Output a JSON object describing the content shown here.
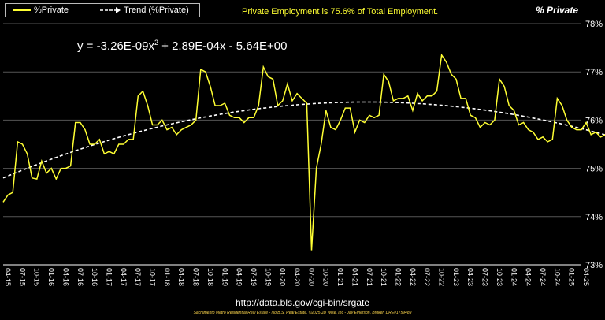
{
  "legend": {
    "series_label": "%Private",
    "trend_label": "Trend (%Private)"
  },
  "header_note": "Private Employment is 75.6% of Total Employment.",
  "corner_title": "% Private",
  "equation": {
    "part1": "y = -3.26E-09x",
    "exponent": "2",
    "part2": " + 2.89E-04x - 5.64E+00"
  },
  "source_url": "http://data.bls.gov/cgi-bin/srgate",
  "credit": "Sacramento Metro Residential Real Estate - No B.S. Real Estate, ©2025 JD Wise, Inc - Jay Emerson, Broker, DRE#1759489",
  "colors": {
    "series": "#ffff33",
    "trend": "#ffffff",
    "background": "#000000"
  },
  "chart_data": {
    "type": "line",
    "ylim": [
      73,
      78
    ],
    "y_ticks": [
      "73%",
      "74%",
      "75%",
      "76%",
      "77%",
      "78%"
    ],
    "x_tick_labels": [
      "04-15",
      "07-15",
      "10-15",
      "01-16",
      "04-16",
      "07-16",
      "10-16",
      "01-17",
      "04-17",
      "07-17",
      "10-17",
      "01-18",
      "04-18",
      "07-18",
      "10-18",
      "01-19",
      "04-19",
      "07-19",
      "10-19",
      "01-20",
      "04-20",
      "07-20",
      "10-20",
      "01-21",
      "04-21",
      "07-21",
      "10-21",
      "01-22",
      "04-22",
      "07-22",
      "10-22",
      "01-23",
      "04-23",
      "07-23",
      "10-23",
      "01-24",
      "04-24",
      "07-24",
      "10-24",
      "01-25",
      "04-25"
    ],
    "start_month": "04-15",
    "series": [
      {
        "name": "%Private",
        "values": [
          74.3,
          74.45,
          74.5,
          75.55,
          75.5,
          75.3,
          74.8,
          74.78,
          75.15,
          74.9,
          75.0,
          74.78,
          75.0,
          75.0,
          75.05,
          75.95,
          75.95,
          75.8,
          75.5,
          75.5,
          75.6,
          75.3,
          75.35,
          75.3,
          75.5,
          75.5,
          75.6,
          75.6,
          76.5,
          76.6,
          76.3,
          75.9,
          75.9,
          76.0,
          75.8,
          75.85,
          75.7,
          75.8,
          75.85,
          75.9,
          76.0,
          77.05,
          77.0,
          76.7,
          76.3,
          76.3,
          76.35,
          76.1,
          76.05,
          76.05,
          75.95,
          76.05,
          76.05,
          76.3,
          77.1,
          76.9,
          76.85,
          76.3,
          76.4,
          76.75,
          76.4,
          76.55,
          76.45,
          76.35,
          73.3,
          75.0,
          75.5,
          76.2,
          75.85,
          75.8,
          76.0,
          76.25,
          76.25,
          75.75,
          76.0,
          75.95,
          76.1,
          76.05,
          76.1,
          76.95,
          76.8,
          76.4,
          76.45,
          76.45,
          76.5,
          76.2,
          76.55,
          76.4,
          76.5,
          76.5,
          76.6,
          77.35,
          77.2,
          76.95,
          76.85,
          76.45,
          76.45,
          76.1,
          76.05,
          75.85,
          75.95,
          75.9,
          76.0,
          76.85,
          76.7,
          76.3,
          76.2,
          75.9,
          75.95,
          75.8,
          75.75,
          75.6,
          75.65,
          75.55,
          75.6,
          76.45,
          76.3,
          76.0,
          75.85,
          75.8,
          75.8,
          75.95,
          75.7,
          75.75,
          75.65,
          75.7,
          75.75,
          75.6
        ]
      },
      {
        "name": "Trend (%Private)",
        "kind": "quadratic-fit"
      }
    ]
  }
}
